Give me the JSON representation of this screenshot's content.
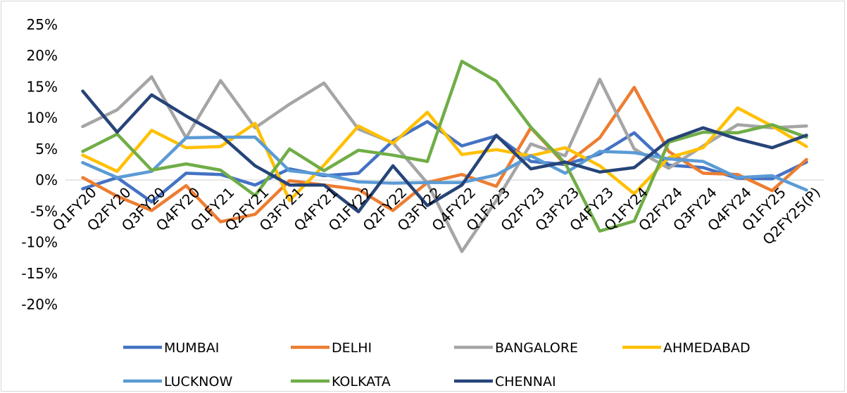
{
  "chart_data": {
    "type": "line",
    "title": "",
    "xlabel": "",
    "ylabel": "",
    "categories": [
      "Q1FY20",
      "Q2FY20",
      "Q3FY20",
      "Q4FY20",
      "Q1FY21",
      "Q2FY21",
      "Q3FY21",
      "Q4FY21",
      "Q1FY22",
      "Q2FY22",
      "Q3FY22",
      "Q4FY22",
      "Q1FY23",
      "Q2FY23",
      "Q3FY23",
      "Q4FY23",
      "Q1FY24",
      "Q2FY24",
      "Q3FY24",
      "Q4FY24",
      "Q1FY25",
      "Q2FY25(P)"
    ],
    "ylim": [
      -20,
      25
    ],
    "yticks": [
      -20,
      -15,
      -10,
      -5,
      0,
      5,
      10,
      15,
      20,
      25
    ],
    "ytick_labels": [
      "-20%",
      "-15%",
      "-10%",
      "-5%",
      "0%",
      "5%",
      "10%",
      "15%",
      "20%",
      "25%"
    ],
    "grid": false,
    "legend_position": "bottom",
    "series": [
      {
        "name": "MUMBAI",
        "color": "#4472c4",
        "values": [
          -1.4,
          0.4,
          -3.5,
          1.1,
          0.9,
          -0.8,
          1.8,
          0.7,
          1.1,
          6.3,
          9.4,
          5.5,
          7.1,
          3.0,
          2.5,
          4.2,
          7.6,
          2.4,
          2.0,
          0.3,
          0.2,
          2.9
        ]
      },
      {
        "name": "DELHI",
        "color": "#ed7d31",
        "values": [
          0.4,
          -2.6,
          -4.9,
          -0.9,
          -6.7,
          -5.5,
          -0.1,
          -0.8,
          -1.5,
          -4.9,
          -0.4,
          0.9,
          -1.0,
          8.4,
          2.5,
          6.8,
          14.9,
          4.6,
          1.1,
          0.9,
          -1.7,
          3.3
        ]
      },
      {
        "name": "BANGALORE",
        "color": "#a5a5a5",
        "values": [
          8.6,
          11.3,
          16.6,
          6.8,
          16.0,
          8.4,
          12.2,
          15.6,
          8.2,
          6.0,
          -0.5,
          -11.5,
          -3.3,
          5.8,
          3.9,
          16.2,
          5.0,
          1.9,
          5.5,
          8.9,
          8.4,
          8.7
        ]
      },
      {
        "name": "AHMEDABAD",
        "color": "#ffc000",
        "values": [
          4.0,
          1.4,
          8.0,
          5.2,
          5.4,
          9.1,
          -3.3,
          2.4,
          8.7,
          5.9,
          10.9,
          4.1,
          4.9,
          3.9,
          5.2,
          2.3,
          -2.2,
          3.6,
          5.2,
          11.6,
          8.7,
          5.4
        ]
      },
      {
        "name": "LUCKNOW",
        "color": "#5b9bd5",
        "values": [
          2.8,
          0.4,
          1.4,
          6.8,
          6.9,
          6.9,
          1.5,
          0.9,
          -0.3,
          -0.5,
          -0.4,
          -0.4,
          0.8,
          3.9,
          1.1,
          4.6,
          4.4,
          3.4,
          3.0,
          0.4,
          0.7,
          -1.6
        ]
      },
      {
        "name": "KOLKATA",
        "color": "#70ad47",
        "values": [
          4.6,
          7.4,
          1.6,
          2.6,
          1.6,
          -2.5,
          5.0,
          1.5,
          4.8,
          4.0,
          3.0,
          19.1,
          15.9,
          8.5,
          2.7,
          -8.2,
          -6.6,
          6.1,
          7.7,
          7.6,
          8.9,
          6.9
        ]
      },
      {
        "name": "CHENNAI",
        "color": "#264478",
        "values": [
          14.3,
          7.7,
          13.7,
          10.3,
          7.2,
          2.3,
          -0.8,
          -0.8,
          -5.1,
          2.3,
          -4.1,
          -0.8,
          7.2,
          1.8,
          2.9,
          1.3,
          2.0,
          6.4,
          8.4,
          6.6,
          5.2,
          7.2
        ]
      }
    ]
  }
}
